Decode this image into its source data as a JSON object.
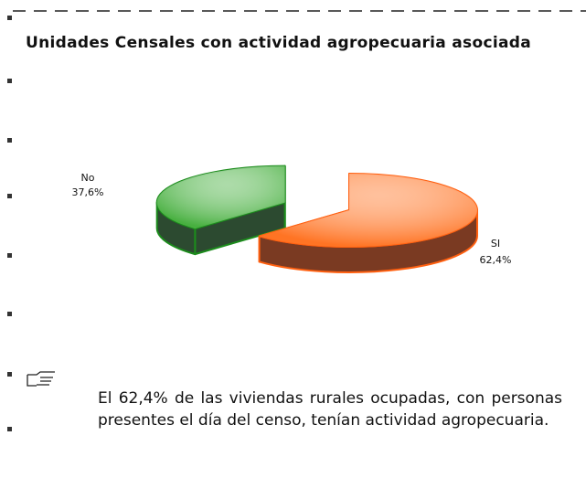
{
  "chart_data": {
    "type": "pie",
    "title": "Unidades Censales con actividad agropecuaria asociada",
    "categories": [
      "No",
      "SI"
    ],
    "values": [
      37.6,
      62.4
    ],
    "value_labels": [
      "37,6%",
      "62,4%"
    ],
    "colors": [
      "#48b040",
      "#ff7424"
    ],
    "annotations": [
      "El 62,4% de las viviendas rurales ocupadas, con personas presentes el día del censo, tenían actividad agropecuaria."
    ]
  }
}
